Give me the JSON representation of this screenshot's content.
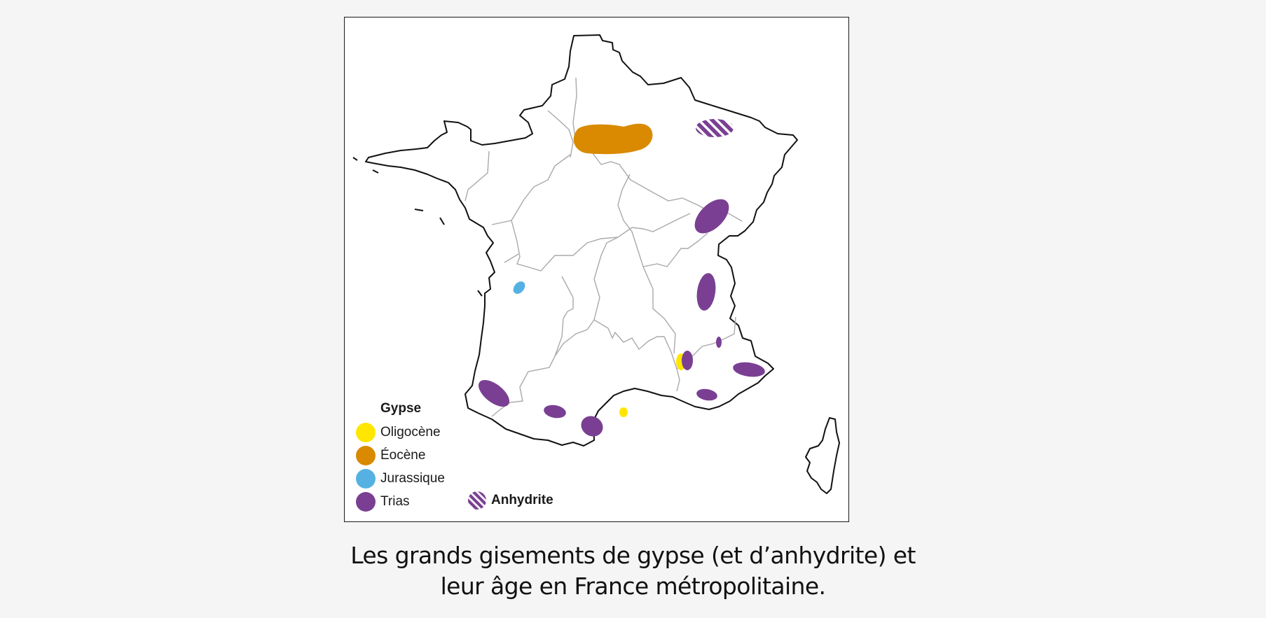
{
  "legend": {
    "title": "Gypse",
    "items": [
      {
        "label": "Oligocène",
        "color": "#ffe600"
      },
      {
        "label": "Éocène",
        "color": "#d98a00"
      },
      {
        "label": "Jurassique",
        "color": "#56b1e3"
      },
      {
        "label": "Trias",
        "color": "#7a3f93"
      }
    ],
    "anhydrite": {
      "label": "Anhydrite",
      "color": "#7a3f93",
      "pattern": "hatched"
    }
  },
  "colors": {
    "oligocene": "#ffe600",
    "eocene": "#d98a00",
    "jurassique": "#56b1e3",
    "trias": "#7a3f93",
    "border": "#111111",
    "region_border": "#a9a9a9"
  },
  "caption": {
    "line1": "Les grands gisements de gypse (et d’anhydrite) et",
    "line2": "leur âge en France métropolitaine."
  }
}
